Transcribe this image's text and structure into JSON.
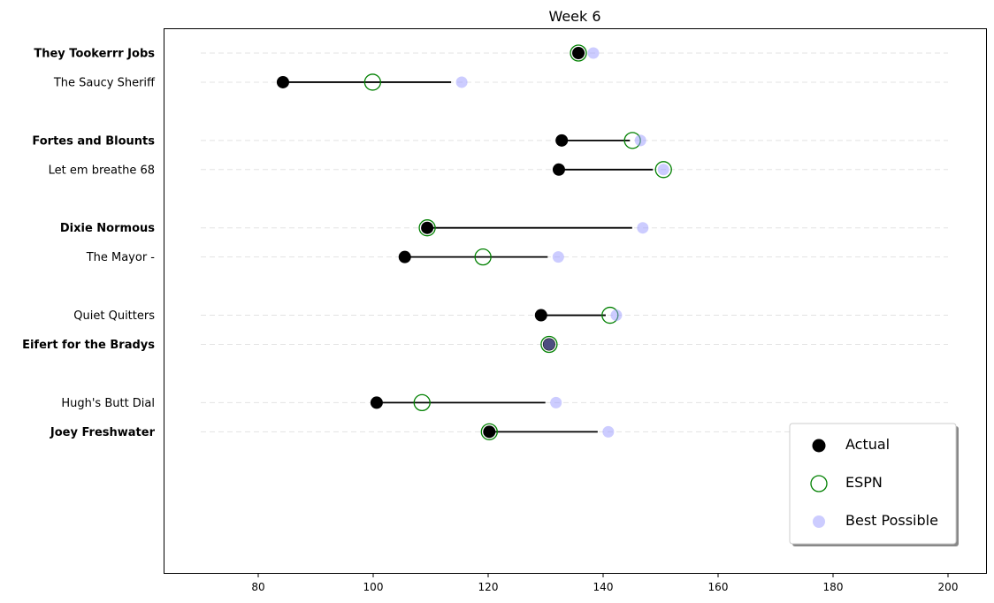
{
  "chart_data": {
    "type": "dumbbell",
    "title": "Week 6",
    "xlabel": "",
    "ylabel": "",
    "xlim": [
      63.5,
      206.6
    ],
    "xticks": [
      80,
      100,
      120,
      140,
      160,
      180,
      200
    ],
    "grid_range": [
      70,
      200
    ],
    "legend": {
      "placement": "bottom-right",
      "entries": [
        "Actual",
        "ESPN",
        "Best Possible"
      ]
    },
    "colors": {
      "actual": "#000000",
      "espn": "#008000",
      "best": "#9999ff"
    },
    "teams": [
      {
        "name": "They Tookerrr Jobs",
        "bold": true,
        "slot": 0,
        "actual": 135.7,
        "espn": 135.7,
        "best": 138.3
      },
      {
        "name": "The Saucy Sheriff",
        "bold": false,
        "slot": 1,
        "actual": 84.3,
        "espn": 99.9,
        "best": 115.4
      },
      {
        "name": "Fortes and Blounts",
        "bold": true,
        "slot": 3,
        "actual": 132.8,
        "espn": 145.1,
        "best": 146.5
      },
      {
        "name": "Let em breathe 68",
        "bold": false,
        "slot": 4,
        "actual": 132.3,
        "espn": 150.5,
        "best": 150.5
      },
      {
        "name": "Dixie Normous",
        "bold": true,
        "slot": 6,
        "actual": 109.4,
        "espn": 109.4,
        "best": 146.9
      },
      {
        "name": "The Mayor -",
        "bold": false,
        "slot": 7,
        "actual": 105.5,
        "espn": 119.1,
        "best": 132.2
      },
      {
        "name": "Quiet Quitters",
        "bold": false,
        "slot": 9,
        "actual": 129.2,
        "espn": 141.2,
        "best": 142.3
      },
      {
        "name": "Eifert  for the Bradys",
        "bold": true,
        "slot": 10,
        "actual": 130.6,
        "espn": 130.6,
        "best": 130.6
      },
      {
        "name": "Hugh's  Butt Dial",
        "bold": false,
        "slot": 12,
        "actual": 100.6,
        "espn": 108.5,
        "best": 131.8
      },
      {
        "name": "Joey Freshwater",
        "bold": true,
        "slot": 13,
        "actual": 120.2,
        "espn": 120.2,
        "best": 140.9
      }
    ]
  }
}
